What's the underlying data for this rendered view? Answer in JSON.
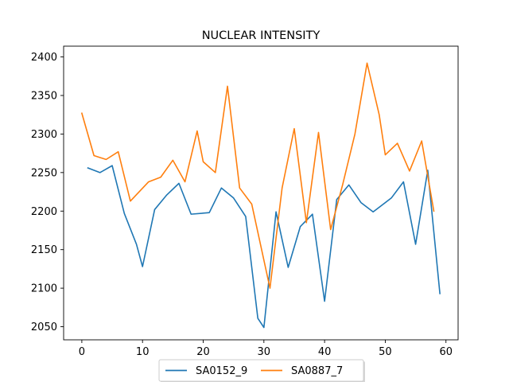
{
  "chart_data": {
    "type": "line",
    "title": "NUCLEAR INTENSITY",
    "xlabel": "",
    "ylabel": "",
    "xlim": [
      -3,
      62
    ],
    "ylim": [
      2033,
      2414
    ],
    "xticks": [
      0,
      10,
      20,
      30,
      40,
      50,
      60
    ],
    "yticks": [
      2050,
      2100,
      2150,
      2200,
      2250,
      2300,
      2350,
      2400
    ],
    "grid": false,
    "legend_placement": "bottom-center",
    "series": [
      {
        "name": "SA0152_9",
        "color": "#1f77b4",
        "x": [
          1,
          3,
          5,
          7,
          9,
          10,
          12,
          14,
          16,
          18,
          21,
          23,
          25,
          27,
          29,
          30,
          32,
          34,
          36,
          38,
          40,
          42,
          44,
          46,
          48,
          51,
          53,
          55,
          57,
          59
        ],
        "y": [
          2256,
          2250,
          2259,
          2197,
          2157,
          2128,
          2202,
          2221,
          2236,
          2196,
          2198,
          2230,
          2217,
          2193,
          2061,
          2049,
          2199,
          2127,
          2180,
          2196,
          2083,
          2215,
          2234,
          2211,
          2199,
          2217,
          2238,
          2157,
          2253,
          2093
        ]
      },
      {
        "name": "SA0887_7",
        "color": "#ff7f0e",
        "x": [
          0,
          2,
          4,
          6,
          8,
          11,
          13,
          15,
          17,
          19,
          20,
          22,
          24,
          26,
          28,
          31,
          33,
          35,
          37,
          39,
          41,
          43,
          45,
          47,
          49,
          50,
          52,
          54,
          56,
          58
        ],
        "y": [
          2327,
          2272,
          2267,
          2277,
          2213,
          2238,
          2244,
          2266,
          2238,
          2304,
          2264,
          2250,
          2362,
          2230,
          2209,
          2100,
          2230,
          2307,
          2185,
          2302,
          2176,
          2235,
          2300,
          2392,
          2325,
          2273,
          2288,
          2252,
          2291,
          2200
        ]
      }
    ]
  }
}
